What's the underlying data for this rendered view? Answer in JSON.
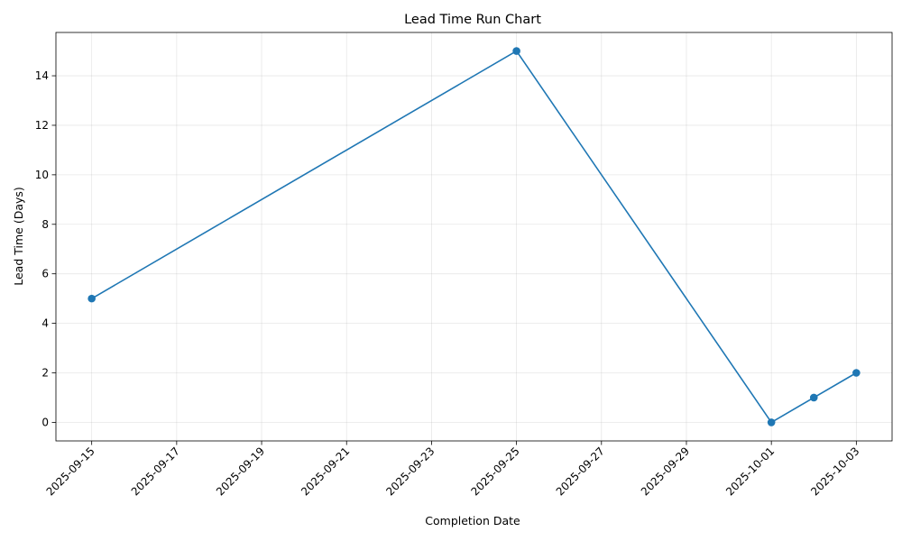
{
  "chart_data": {
    "type": "line",
    "title": "Lead Time Run Chart",
    "xlabel": "Completion Date",
    "ylabel": "Lead Time (Days)",
    "x_axis_type": "date",
    "xlim": [
      "2025-09-14T03:47",
      "2025-10-03T20:12"
    ],
    "ylim": [
      -0.75,
      15.75
    ],
    "x_ticks": [
      "2025-09-15",
      "2025-09-17",
      "2025-09-19",
      "2025-09-21",
      "2025-09-23",
      "2025-09-25",
      "2025-09-27",
      "2025-09-29",
      "2025-10-01",
      "2025-10-03"
    ],
    "y_ticks": [
      0,
      2,
      4,
      6,
      8,
      10,
      12,
      14
    ],
    "x_tick_rotation_deg": 45,
    "grid": true,
    "series": [
      {
        "color": "#1f77b4",
        "marker": "circle",
        "points": [
          {
            "x": "2025-09-15",
            "y": 5
          },
          {
            "x": "2025-09-25",
            "y": 15
          },
          {
            "x": "2025-10-01",
            "y": 0
          },
          {
            "x": "2025-10-02",
            "y": 1
          },
          {
            "x": "2025-10-03",
            "y": 2
          }
        ]
      }
    ]
  }
}
